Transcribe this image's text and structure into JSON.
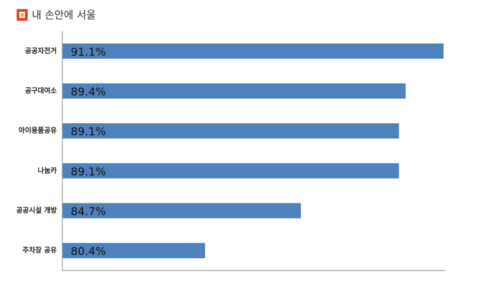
{
  "chart_data": {
    "type": "barh",
    "brand": "내 손안에 서울",
    "categories": [
      "공공자전거",
      "공구대여소",
      "아이용품공유",
      "나눔카",
      "공공시설 개방",
      "주차장 공유"
    ],
    "values": [
      91.1,
      89.4,
      89.1,
      89.1,
      84.7,
      80.4
    ],
    "value_labels": [
      "91.1%",
      "89.4%",
      "89.1%",
      "89.1%",
      "84.7%",
      "80.4%"
    ],
    "color": "#4f81bd",
    "xlim": [
      74,
      91.1
    ]
  }
}
